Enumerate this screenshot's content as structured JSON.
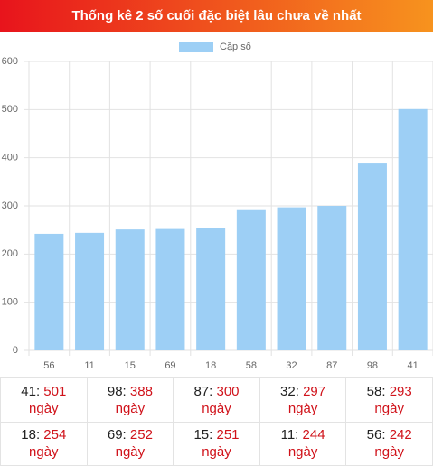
{
  "chart_data": {
    "type": "bar",
    "title": "Thống kê 2 số cuối đặc biệt lâu chưa về nhất",
    "categories": [
      "56",
      "11",
      "15",
      "69",
      "18",
      "58",
      "32",
      "87",
      "98",
      "41"
    ],
    "series": [
      {
        "name": "Cặp số",
        "color": "#9dcff5",
        "values": [
          242,
          244,
          251,
          252,
          254,
          293,
          297,
          300,
          388,
          501
        ]
      }
    ],
    "ylim": [
      0,
      600
    ],
    "yticks": [
      0,
      100,
      200,
      300,
      400,
      500,
      600
    ],
    "grid": true
  },
  "table": {
    "rows": [
      [
        {
          "label": "41:",
          "value": 501,
          "unit": "ngày"
        },
        {
          "label": "98:",
          "value": 388,
          "unit": "ngày"
        },
        {
          "label": "87:",
          "value": 300,
          "unit": "ngày"
        },
        {
          "label": "32:",
          "value": 297,
          "unit": "ngày"
        },
        {
          "label": "58:",
          "value": 293,
          "unit": "ngày"
        }
      ],
      [
        {
          "label": "18:",
          "value": 254,
          "unit": "ngày"
        },
        {
          "label": "69:",
          "value": 252,
          "unit": "ngày"
        },
        {
          "label": "15:",
          "value": 251,
          "unit": "ngày"
        },
        {
          "label": "11:",
          "value": 244,
          "unit": "ngày"
        },
        {
          "label": "56:",
          "value": 242,
          "unit": "ngày"
        }
      ]
    ]
  }
}
